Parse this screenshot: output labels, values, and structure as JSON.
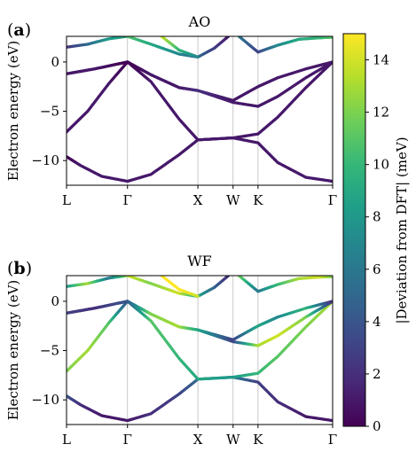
{
  "chart_data": [
    {
      "type": "line",
      "panel_label_paren_open": "(",
      "panel_letter": "a",
      "panel_label_paren_close": ")",
      "title": "AO",
      "ylabel": "Electron energy (eV)",
      "ylim": [
        -12.5,
        2.6
      ],
      "yticks": [
        0,
        -5,
        -10
      ],
      "ytick_labels": [
        "0",
        "−5",
        "−10"
      ],
      "x_kpoints": [
        {
          "label": "L",
          "x": 0
        },
        {
          "label": "Γ",
          "x": 0.866
        },
        {
          "label": "X",
          "x": 1.866
        },
        {
          "label": "W",
          "x": 2.366
        },
        {
          "label": "K",
          "x": 2.72
        },
        {
          "label": "Γ",
          "x": 3.78
        }
      ],
      "show_x_tick_labels": true,
      "bands": [
        {
          "points": [
            [
              0,
              -9.6
            ],
            [
              0.2,
              -10.5
            ],
            [
              0.5,
              -11.6
            ],
            [
              0.866,
              -12.1
            ],
            [
              1.2,
              -11.4
            ],
            [
              1.6,
              -9.4
            ],
            [
              1.866,
              -7.9
            ],
            [
              2.366,
              -7.7
            ],
            [
              2.72,
              -8.2
            ],
            [
              3.0,
              -10.2
            ],
            [
              3.4,
              -11.7
            ],
            [
              3.78,
              -12.1
            ]
          ],
          "dev": [
            0,
            1,
            1,
            1,
            1,
            1,
            1,
            1,
            1,
            1,
            1,
            1
          ]
        },
        {
          "points": [
            [
              0,
              -7.1
            ],
            [
              0.3,
              -5.0
            ],
            [
              0.6,
              -2.2
            ],
            [
              0.866,
              0
            ],
            [
              1.2,
              -2.0
            ],
            [
              1.6,
              -5.8
            ],
            [
              1.866,
              -7.9
            ],
            [
              2.366,
              -7.7
            ],
            [
              2.72,
              -7.3
            ],
            [
              3.0,
              -5.6
            ],
            [
              3.4,
              -2.6
            ],
            [
              3.78,
              0
            ]
          ],
          "dev": [
            1,
            1,
            1,
            0,
            1,
            1,
            1,
            1,
            1,
            1,
            1,
            1
          ]
        },
        {
          "points": [
            [
              0,
              -1.2
            ],
            [
              0.4,
              -0.7
            ],
            [
              0.866,
              0
            ],
            [
              1.2,
              -1.3
            ],
            [
              1.6,
              -2.6
            ],
            [
              1.866,
              -2.9
            ],
            [
              2.366,
              -4.1
            ],
            [
              2.72,
              -4.5
            ],
            [
              3.0,
              -3.5
            ],
            [
              3.4,
              -1.6
            ],
            [
              3.78,
              0
            ]
          ],
          "dev": [
            1,
            1,
            0,
            1,
            1,
            2,
            1,
            1,
            1,
            1,
            1
          ]
        },
        {
          "points": [
            [
              0,
              -1.2
            ],
            [
              0.4,
              -0.7
            ],
            [
              0.866,
              0
            ],
            [
              1.2,
              -1.3
            ],
            [
              1.6,
              -2.6
            ],
            [
              1.866,
              -2.9
            ],
            [
              2.366,
              -3.9
            ],
            [
              2.72,
              -2.5
            ],
            [
              3.0,
              -1.6
            ],
            [
              3.4,
              -0.7
            ],
            [
              3.78,
              0
            ]
          ],
          "dev": [
            1,
            1,
            0,
            1,
            1,
            2,
            1,
            1,
            1,
            1,
            1
          ]
        },
        {
          "points": [
            [
              0,
              1.5
            ],
            [
              0.3,
              1.8
            ],
            [
              0.6,
              2.35
            ],
            [
              0.866,
              2.6
            ]
          ],
          "dev": [
            2,
            5,
            8,
            9
          ]
        },
        {
          "points": [
            [
              0.866,
              2.6
            ],
            [
              1.2,
              1.8
            ],
            [
              1.6,
              0.8
            ],
            [
              1.866,
              0.5
            ],
            [
              2.1,
              1.4
            ],
            [
              2.3,
              2.6
            ]
          ],
          "dev": [
            11,
            9,
            7,
            5,
            3,
            1
          ]
        },
        {
          "points": [
            [
              1.35,
              2.6
            ],
            [
              1.6,
              1.2
            ],
            [
              1.866,
              0.5
            ]
          ],
          "dev": [
            14,
            10,
            7
          ]
        },
        {
          "points": [
            [
              2.45,
              2.6
            ],
            [
              2.72,
              1.0
            ],
            [
              3.0,
              1.7
            ],
            [
              3.3,
              2.3
            ],
            [
              3.6,
              2.45
            ],
            [
              3.78,
              2.5
            ]
          ],
          "dev": [
            6,
            3,
            7,
            9,
            10,
            11
          ]
        }
      ]
    },
    {
      "type": "line",
      "panel_label_paren_open": "(",
      "panel_letter": "b",
      "panel_label_paren_close": ")",
      "title": "WF",
      "ylabel": "Electron energy (eV)",
      "ylim": [
        -12.5,
        2.6
      ],
      "yticks": [
        0,
        -5,
        -10
      ],
      "ytick_labels": [
        "0",
        "−5",
        "−10"
      ],
      "x_kpoints": [
        {
          "label": "L",
          "x": 0
        },
        {
          "label": "Γ",
          "x": 0.866
        },
        {
          "label": "X",
          "x": 1.866
        },
        {
          "label": "W",
          "x": 2.366
        },
        {
          "label": "K",
          "x": 2.72
        },
        {
          "label": "Γ",
          "x": 3.78
        }
      ],
      "show_x_tick_labels": true,
      "bands": [
        {
          "points": [
            [
              0,
              -9.6
            ],
            [
              0.2,
              -10.5
            ],
            [
              0.5,
              -11.6
            ],
            [
              0.866,
              -12.1
            ],
            [
              1.2,
              -11.4
            ],
            [
              1.6,
              -9.4
            ],
            [
              1.866,
              -7.9
            ],
            [
              2.366,
              -7.7
            ],
            [
              2.72,
              -8.2
            ],
            [
              3.0,
              -10.2
            ],
            [
              3.4,
              -11.7
            ],
            [
              3.78,
              -12.1
            ]
          ],
          "dev": [
            4,
            2,
            1,
            1,
            2,
            3,
            5,
            6,
            3,
            2,
            1,
            1
          ]
        },
        {
          "points": [
            [
              0,
              -7.1
            ],
            [
              0.3,
              -5.0
            ],
            [
              0.6,
              -2.2
            ],
            [
              0.866,
              0
            ],
            [
              1.2,
              -2.0
            ],
            [
              1.6,
              -5.8
            ],
            [
              1.866,
              -7.9
            ],
            [
              2.366,
              -7.7
            ],
            [
              2.72,
              -7.3
            ],
            [
              3.0,
              -5.6
            ],
            [
              3.4,
              -2.6
            ],
            [
              3.78,
              0
            ]
          ],
          "dev": [
            12,
            13,
            11,
            4,
            11,
            10,
            9,
            8,
            10,
            11,
            12,
            13
          ]
        },
        {
          "points": [
            [
              0,
              -1.2
            ],
            [
              0.4,
              -0.7
            ],
            [
              0.866,
              0
            ],
            [
              1.2,
              -1.3
            ],
            [
              1.6,
              -2.6
            ],
            [
              1.866,
              -2.9
            ],
            [
              2.366,
              -4.1
            ],
            [
              2.72,
              -4.5
            ],
            [
              3.0,
              -3.5
            ],
            [
              3.4,
              -1.6
            ],
            [
              3.78,
              0
            ]
          ],
          "dev": [
            3,
            2,
            4,
            12,
            13,
            9,
            3,
            13,
            14,
            12,
            2
          ]
        },
        {
          "points": [
            [
              0,
              -1.2
            ],
            [
              0.4,
              -0.7
            ],
            [
              0.866,
              0
            ],
            [
              1.2,
              -1.3
            ],
            [
              1.6,
              -2.6
            ],
            [
              1.866,
              -2.9
            ],
            [
              2.366,
              -3.9
            ],
            [
              2.72,
              -2.5
            ],
            [
              3.0,
              -1.6
            ],
            [
              3.4,
              -0.7
            ],
            [
              3.78,
              0
            ]
          ],
          "dev": [
            3,
            2,
            4,
            12,
            13,
            9,
            3,
            9,
            7,
            10,
            2
          ]
        },
        {
          "points": [
            [
              0,
              1.5
            ],
            [
              0.3,
              1.8
            ],
            [
              0.6,
              2.35
            ],
            [
              0.866,
              2.6
            ]
          ],
          "dev": [
            8,
            13,
            6,
            12
          ]
        },
        {
          "points": [
            [
              0.866,
              2.6
            ],
            [
              1.2,
              1.8
            ],
            [
              1.6,
              0.8
            ],
            [
              1.866,
              0.5
            ],
            [
              2.1,
              1.4
            ],
            [
              2.3,
              2.6
            ]
          ],
          "dev": [
            14,
            12,
            14,
            9,
            5,
            2
          ]
        },
        {
          "points": [
            [
              1.35,
              2.6
            ],
            [
              1.6,
              1.2
            ],
            [
              1.866,
              0.5
            ]
          ],
          "dev": [
            15,
            15,
            14
          ]
        },
        {
          "points": [
            [
              2.45,
              2.6
            ],
            [
              2.72,
              1.0
            ],
            [
              3.0,
              1.7
            ],
            [
              3.3,
              2.3
            ],
            [
              3.6,
              2.45
            ],
            [
              3.78,
              2.5
            ]
          ],
          "dev": [
            12,
            6,
            10,
            13,
            14,
            12
          ]
        }
      ]
    }
  ],
  "colorbar": {
    "label": "|Deviation from DFT|   (meV)",
    "range": [
      0,
      15
    ],
    "ticks": [
      0,
      2,
      4,
      6,
      8,
      10,
      12,
      14
    ],
    "tick_labels": [
      "0",
      "2",
      "4",
      "6",
      "8",
      "10",
      "12",
      "14"
    ],
    "colormap": "viridis",
    "colors": [
      "#440154",
      "#482878",
      "#3e4989",
      "#31688e",
      "#26828e",
      "#1f9e89",
      "#35b779",
      "#6ece58",
      "#b5de2b",
      "#fde725"
    ]
  }
}
